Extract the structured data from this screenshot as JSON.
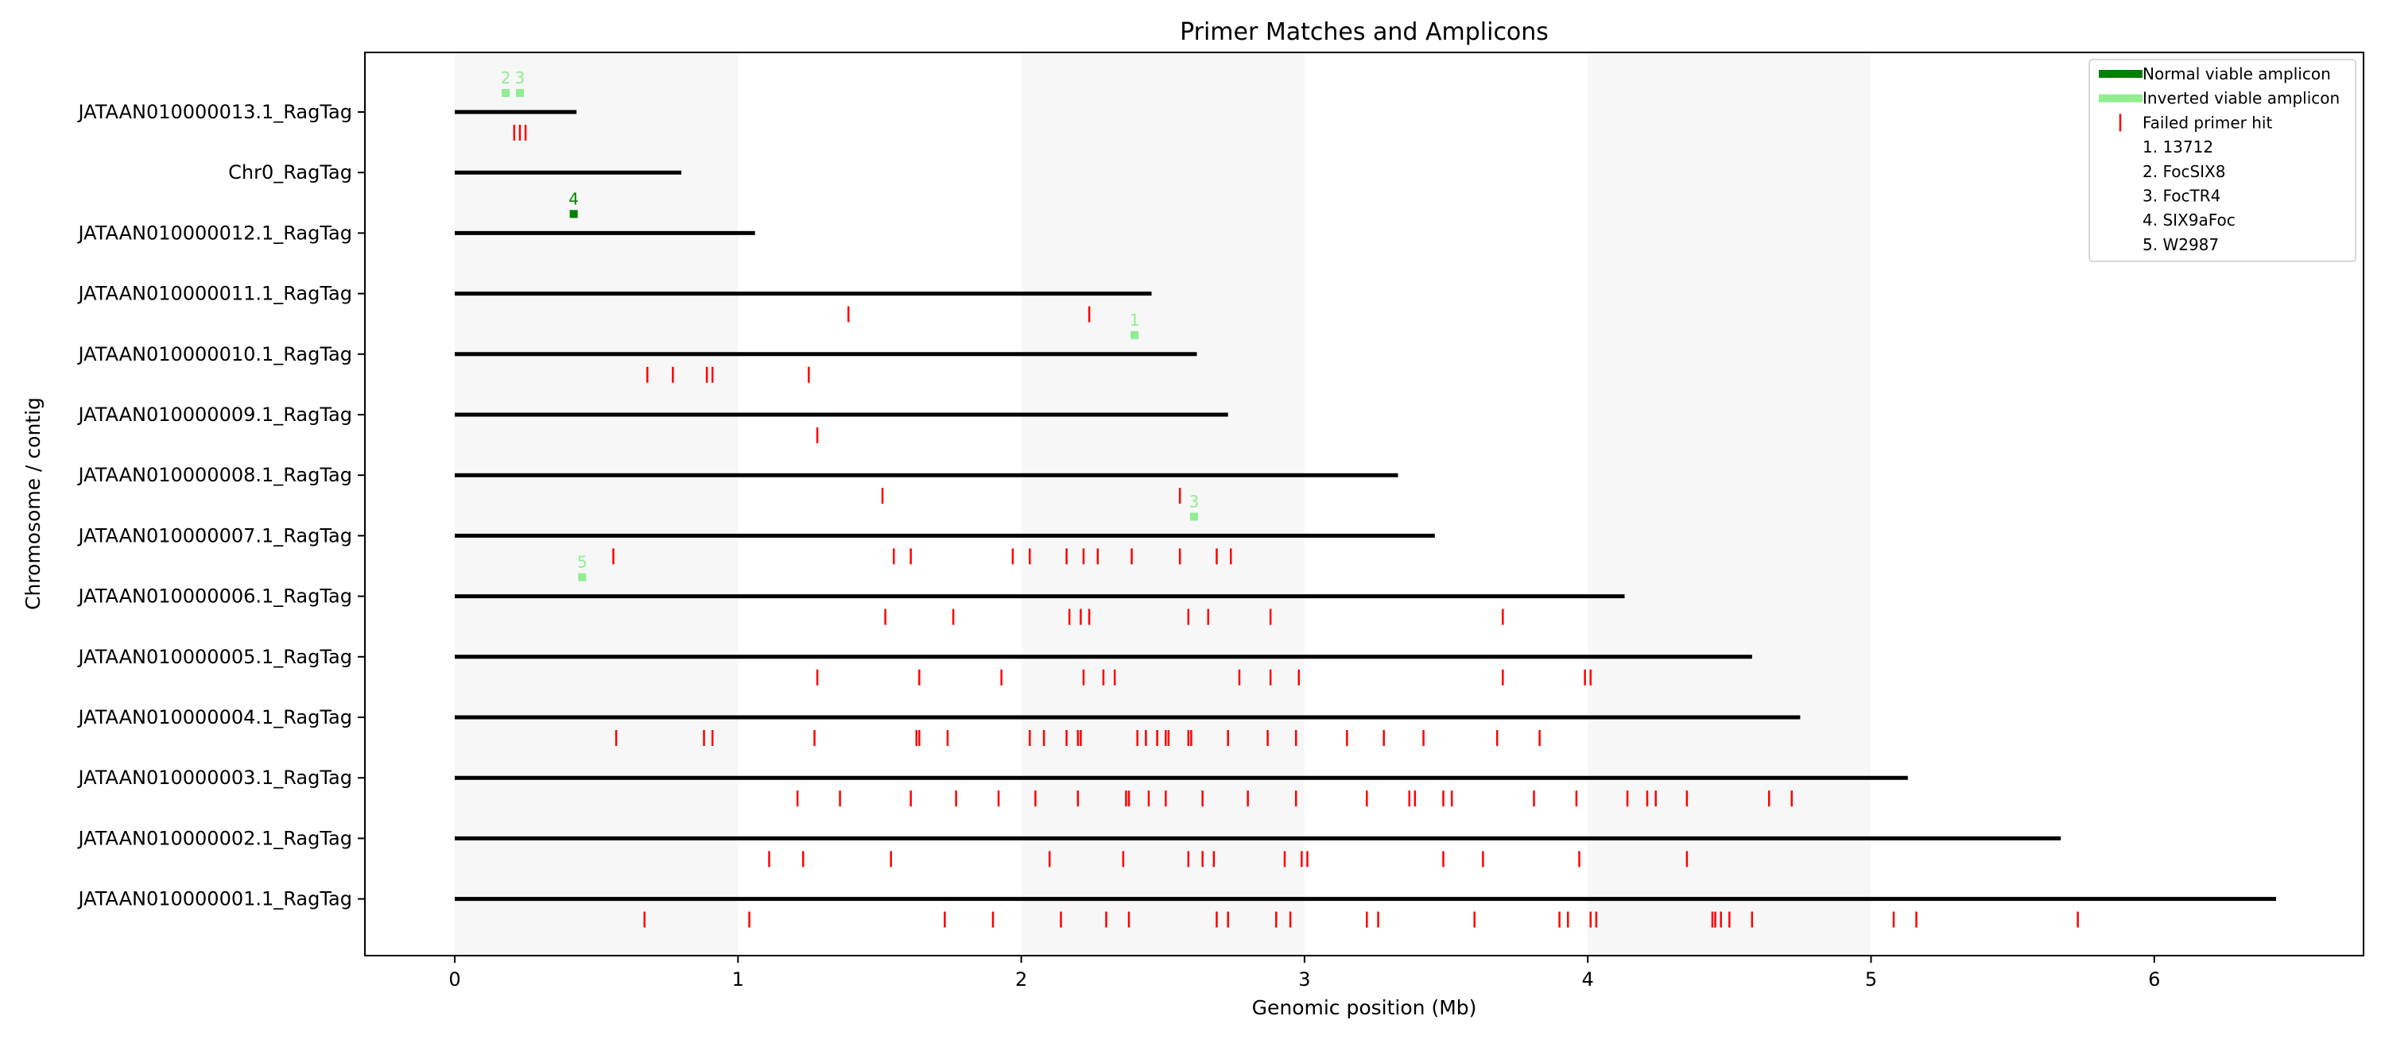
{
  "chart_data": {
    "type": "scatter",
    "title": "Primer Matches and Amplicons",
    "xlabel": "Genomic position (Mb)",
    "ylabel": "Chromosome / contig",
    "xlim": [
      -0.32,
      6.74
    ],
    "xticks": [
      "0",
      "1",
      "2",
      "3",
      "4",
      "5",
      "6"
    ],
    "shaded_bands_mb": [
      [
        0,
        1
      ],
      [
        2,
        3
      ],
      [
        4,
        5
      ]
    ],
    "colors": {
      "normal_amplicon": "#008000",
      "inverted_amplicon": "#90ee90",
      "failed_hit": "#ff0000",
      "contig_line": "#000000",
      "band": "#f7f7f7"
    },
    "legend": {
      "position": "top-right",
      "entries": [
        {
          "label": "Normal viable amplicon",
          "kind": "normal"
        },
        {
          "label": "Inverted viable amplicon",
          "kind": "inverted"
        },
        {
          "label": "Failed primer hit",
          "kind": "failed"
        },
        {
          "label": "1. 13712",
          "kind": "text"
        },
        {
          "label": "2. FocSIX8",
          "kind": "text"
        },
        {
          "label": "3. FocTR4",
          "kind": "text"
        },
        {
          "label": "4. SIX9aFoc",
          "kind": "text"
        },
        {
          "label": "5. W2987",
          "kind": "text"
        }
      ]
    },
    "contigs": [
      {
        "name": "JATAAN010000013.1_RagTag",
        "length_mb": 0.43,
        "failed_hits": [
          0.21,
          0.23,
          0.25
        ],
        "amplicons": [
          {
            "pos": 0.18,
            "label": "2",
            "kind": "inverted"
          },
          {
            "pos": 0.23,
            "label": "3",
            "kind": "inverted"
          }
        ]
      },
      {
        "name": "Chr0_RagTag",
        "length_mb": 0.8,
        "failed_hits": [],
        "amplicons": []
      },
      {
        "name": "JATAAN010000012.1_RagTag",
        "length_mb": 1.06,
        "failed_hits": [],
        "amplicons": [
          {
            "pos": 0.42,
            "label": "4",
            "kind": "normal"
          }
        ]
      },
      {
        "name": "JATAAN010000011.1_RagTag",
        "length_mb": 2.46,
        "failed_hits": [
          1.39,
          2.24
        ],
        "amplicons": []
      },
      {
        "name": "JATAAN010000010.1_RagTag",
        "length_mb": 2.62,
        "failed_hits": [
          0.68,
          0.77,
          0.89,
          0.91,
          1.25
        ],
        "amplicons": [
          {
            "pos": 2.4,
            "label": "1",
            "kind": "inverted"
          }
        ]
      },
      {
        "name": "JATAAN010000009.1_RagTag",
        "length_mb": 2.73,
        "failed_hits": [
          1.28
        ],
        "amplicons": []
      },
      {
        "name": "JATAAN010000008.1_RagTag",
        "length_mb": 3.33,
        "failed_hits": [
          1.51,
          2.56
        ],
        "amplicons": []
      },
      {
        "name": "JATAAN010000007.1_RagTag",
        "length_mb": 3.46,
        "failed_hits": [
          0.56,
          1.55,
          1.61,
          1.97,
          2.03,
          2.16,
          2.22,
          2.27,
          2.39,
          2.56,
          2.69,
          2.74
        ],
        "amplicons": [
          {
            "pos": 2.61,
            "label": "3",
            "kind": "inverted"
          }
        ]
      },
      {
        "name": "JATAAN010000006.1_RagTag",
        "length_mb": 4.13,
        "failed_hits": [
          1.52,
          1.76,
          2.17,
          2.21,
          2.24,
          2.59,
          2.66,
          2.88,
          3.7
        ],
        "amplicons": [
          {
            "pos": 0.45,
            "label": "5",
            "kind": "inverted"
          }
        ]
      },
      {
        "name": "JATAAN010000005.1_RagTag",
        "length_mb": 4.58,
        "failed_hits": [
          1.28,
          1.64,
          1.93,
          2.22,
          2.29,
          2.33,
          2.77,
          2.88,
          2.98,
          3.7,
          3.99,
          4.01
        ],
        "amplicons": []
      },
      {
        "name": "JATAAN010000004.1_RagTag",
        "length_mb": 4.75,
        "failed_hits": [
          0.57,
          0.88,
          0.91,
          1.27,
          1.63,
          1.64,
          1.74,
          2.03,
          2.08,
          2.16,
          2.2,
          2.21,
          2.41,
          2.44,
          2.48,
          2.51,
          2.52,
          2.59,
          2.6,
          2.73,
          2.87,
          2.97,
          3.15,
          3.28,
          3.42,
          3.68,
          3.83
        ],
        "amplicons": []
      },
      {
        "name": "JATAAN010000003.1_RagTag",
        "length_mb": 5.13,
        "failed_hits": [
          1.21,
          1.36,
          1.61,
          1.77,
          1.92,
          2.05,
          2.2,
          2.37,
          2.38,
          2.45,
          2.51,
          2.64,
          2.8,
          2.97,
          3.22,
          3.37,
          3.39,
          3.49,
          3.52,
          3.81,
          3.96,
          4.14,
          4.21,
          4.24,
          4.35,
          4.64,
          4.72
        ],
        "amplicons": []
      },
      {
        "name": "JATAAN010000002.1_RagTag",
        "length_mb": 5.67,
        "failed_hits": [
          1.11,
          1.23,
          1.54,
          2.1,
          2.36,
          2.59,
          2.64,
          2.68,
          2.93,
          2.99,
          3.01,
          3.49,
          3.63,
          3.97,
          4.35
        ],
        "amplicons": []
      },
      {
        "name": "JATAAN010000001.1_RagTag",
        "length_mb": 6.43,
        "failed_hits": [
          0.67,
          1.04,
          1.73,
          1.9,
          2.14,
          2.3,
          2.38,
          2.69,
          2.73,
          2.9,
          2.95,
          3.22,
          3.26,
          3.6,
          3.9,
          3.93,
          4.01,
          4.03,
          4.44,
          4.45,
          4.47,
          4.5,
          4.58,
          5.08,
          5.16,
          5.73
        ],
        "amplicons": []
      }
    ]
  }
}
